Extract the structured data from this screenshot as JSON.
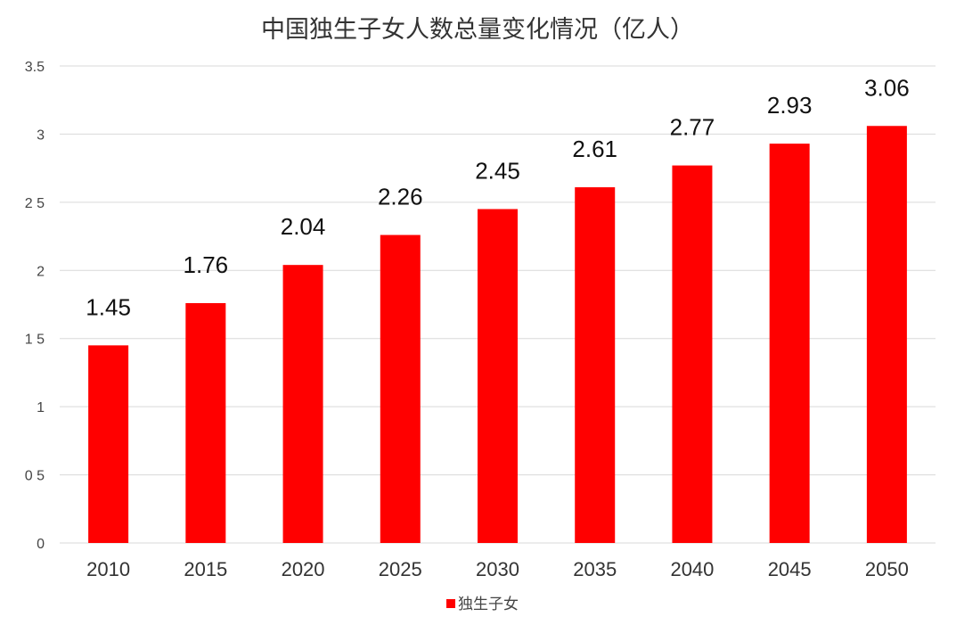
{
  "chart_data": {
    "type": "bar",
    "title": "中国独生子女人数总量变化情况（亿人）",
    "categories": [
      "2010",
      "2015",
      "2020",
      "2025",
      "2030",
      "2035",
      "2040",
      "2045",
      "2050"
    ],
    "series": [
      {
        "name": "独生子女",
        "color": "#ff0000",
        "values": [
          1.45,
          1.76,
          2.04,
          2.26,
          2.45,
          2.61,
          2.77,
          2.93,
          3.06
        ]
      }
    ],
    "data_labels": [
      "1.45",
      "1.76",
      "2.04",
      "2.26",
      "2.45",
      "2.61",
      "2.77",
      "2.93",
      "3.06"
    ],
    "y_ticks": [
      "0",
      "0 5",
      "1",
      "1 5",
      "2",
      "2 5",
      "3",
      "3.5"
    ],
    "ylim": [
      0,
      3.5
    ],
    "grid": true,
    "legend_position": "bottom",
    "xlabel": "",
    "ylabel": ""
  }
}
